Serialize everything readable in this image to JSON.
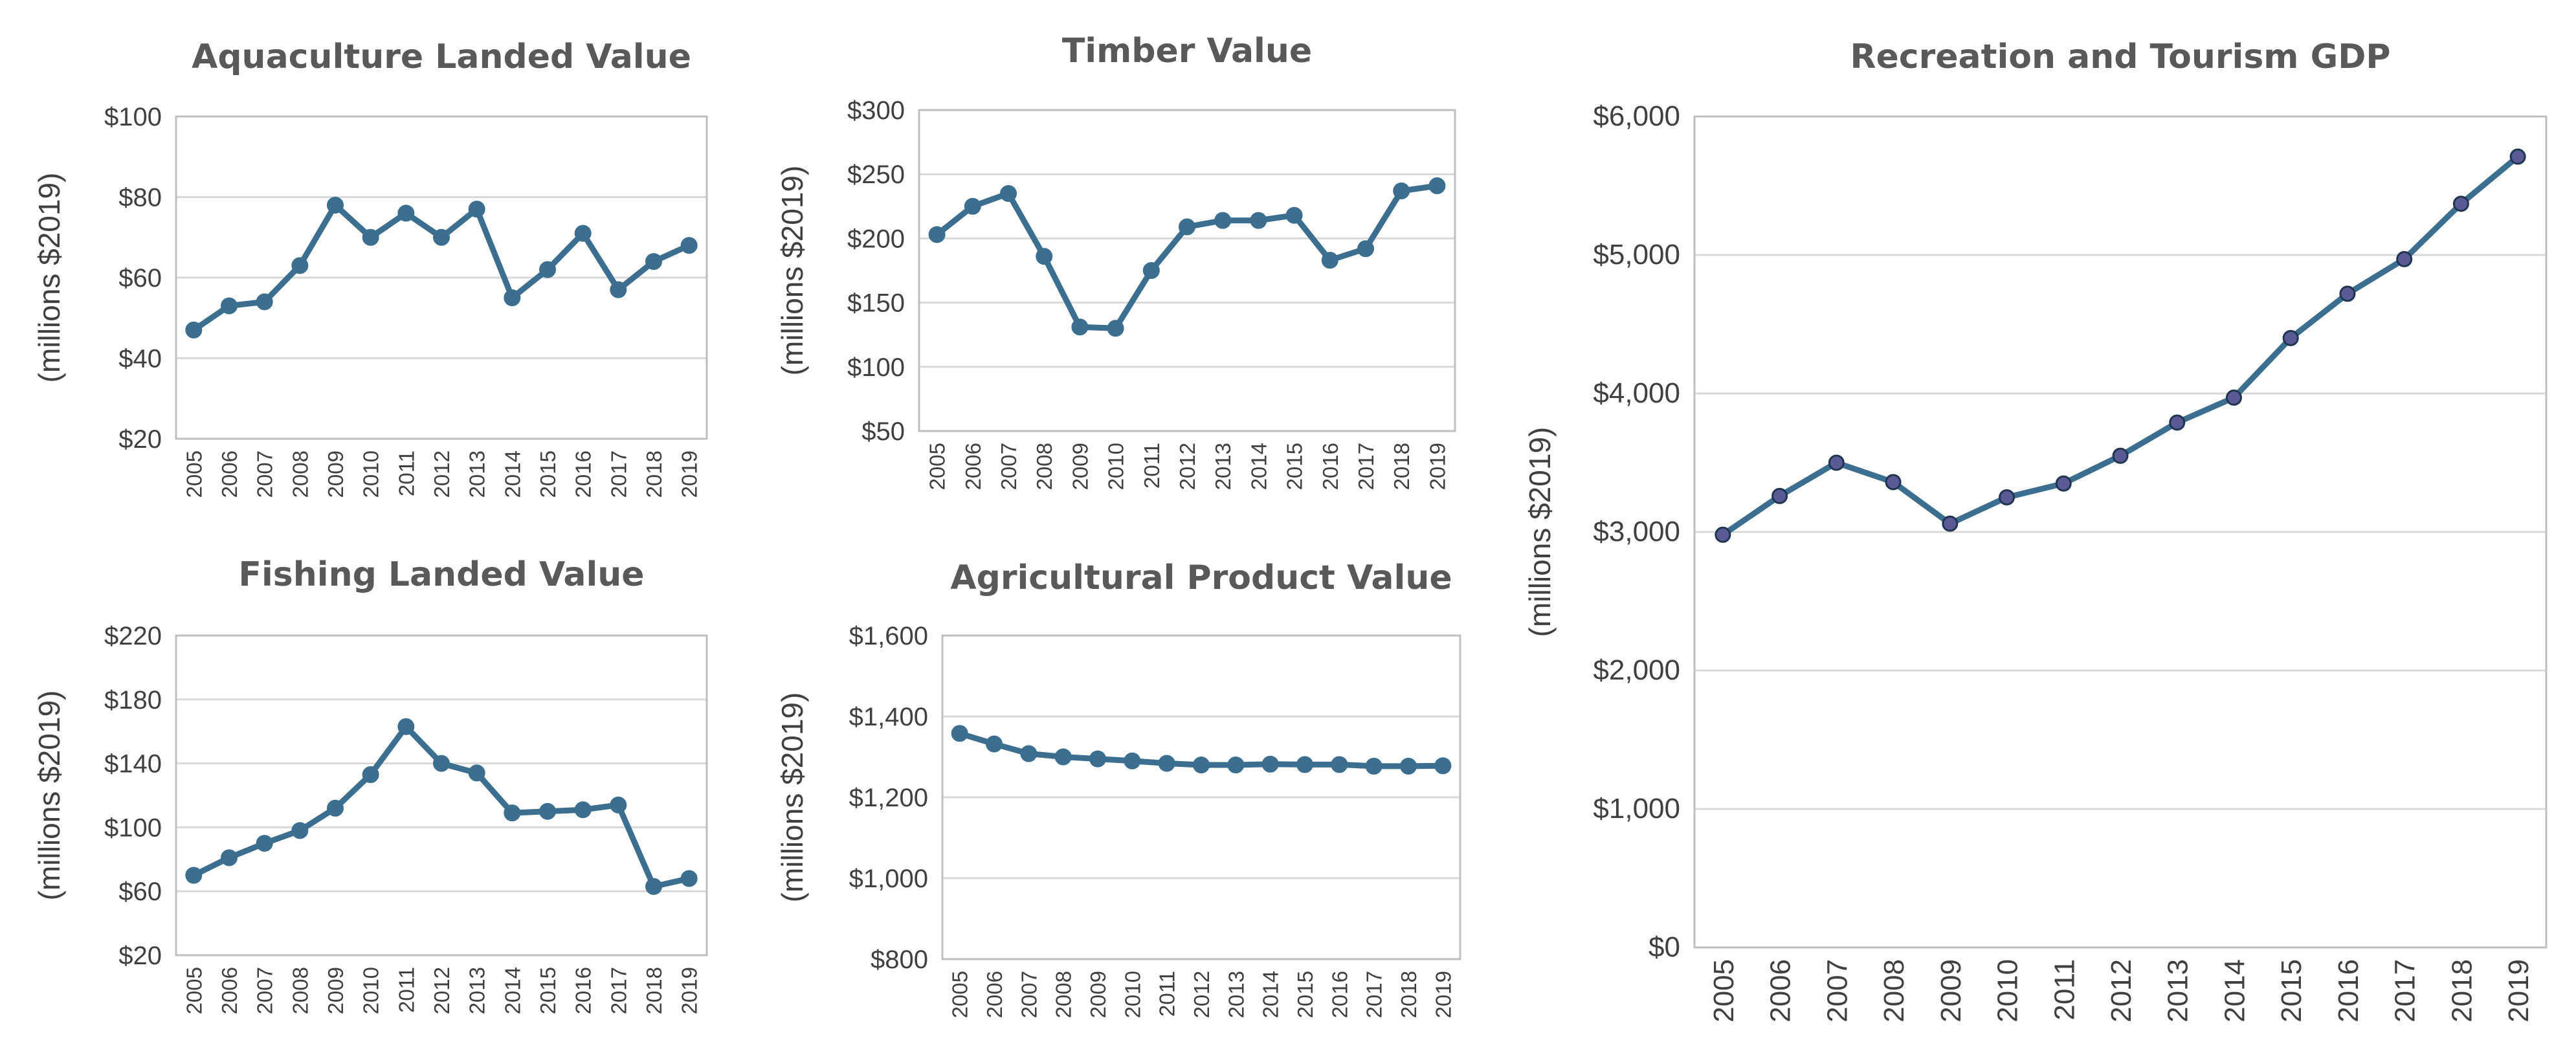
{
  "chart_data": [
    {
      "id": "aquaculture",
      "type": "line",
      "title": "Aquaculture Landed Value",
      "ylabel": "(millions $2019)",
      "ylim": [
        20,
        100
      ],
      "yticks": [
        20,
        40,
        60,
        80,
        100
      ],
      "ytick_labels": [
        "$20",
        "$40",
        "$60",
        "$80",
        "$100"
      ],
      "categories": [
        "2005",
        "2006",
        "2007",
        "2008",
        "2009",
        "2010",
        "2011",
        "2012",
        "2013",
        "2014",
        "2015",
        "2016",
        "2017",
        "2018",
        "2019"
      ],
      "values": [
        47,
        53,
        54,
        63,
        78,
        70,
        76,
        70,
        77,
        55,
        62,
        71,
        57,
        64,
        68
      ],
      "grid": true,
      "line_color": "#3b6e8f"
    },
    {
      "id": "timber",
      "type": "line",
      "title": "Timber Value",
      "ylabel": "(millions $2019)",
      "ylim": [
        50,
        300
      ],
      "yticks": [
        50,
        100,
        150,
        200,
        250,
        300
      ],
      "ytick_labels": [
        "$50",
        "$100",
        "$150",
        "$200",
        "$250",
        "$300"
      ],
      "categories": [
        "2005",
        "2006",
        "2007",
        "2008",
        "2009",
        "2010",
        "2011",
        "2012",
        "2013",
        "2014",
        "2015",
        "2016",
        "2017",
        "2018",
        "2019"
      ],
      "values": [
        203,
        225,
        235,
        186,
        131,
        130,
        175,
        209,
        214,
        214,
        218,
        183,
        192,
        237,
        241
      ],
      "grid": true,
      "line_color": "#3b6e8f"
    },
    {
      "id": "fishing",
      "type": "line",
      "title": "Fishing Landed Value",
      "ylabel": "(millions $2019)",
      "ylim": [
        20,
        220
      ],
      "yticks": [
        20,
        60,
        100,
        140,
        180,
        220
      ],
      "ytick_labels": [
        "$20",
        "$60",
        "$100",
        "$140",
        "$180",
        "$220"
      ],
      "categories": [
        "2005",
        "2006",
        "2007",
        "2008",
        "2009",
        "2010",
        "2011",
        "2012",
        "2013",
        "2014",
        "2015",
        "2016",
        "2017",
        "2018",
        "2019"
      ],
      "values": [
        70,
        81,
        90,
        98,
        112,
        133,
        163,
        140,
        134,
        109,
        110,
        111,
        114,
        63,
        68
      ],
      "grid": true,
      "line_color": "#3b6e8f"
    },
    {
      "id": "agricultural",
      "type": "line",
      "title": "Agricultural Product Value",
      "ylabel": "(millions $2019)",
      "ylim": [
        800,
        1600
      ],
      "yticks": [
        800,
        1000,
        1200,
        1400,
        1600
      ],
      "ytick_labels": [
        "$800",
        "$1,000",
        "$1,200",
        "$1,400",
        "$1,600"
      ],
      "categories": [
        "2005",
        "2006",
        "2007",
        "2008",
        "2009",
        "2010",
        "2011",
        "2012",
        "2013",
        "2014",
        "2015",
        "2016",
        "2017",
        "2018",
        "2019"
      ],
      "values": [
        1358,
        1332,
        1308,
        1300,
        1295,
        1290,
        1284,
        1280,
        1280,
        1282,
        1281,
        1281,
        1277,
        1277,
        1278
      ],
      "grid": true,
      "line_color": "#3b6e8f"
    },
    {
      "id": "recreation",
      "type": "line",
      "title": "Recreation and Tourism GDP",
      "ylabel": "(millions $2019)",
      "ylim": [
        0,
        6000
      ],
      "yticks": [
        0,
        1000,
        2000,
        3000,
        4000,
        5000,
        6000
      ],
      "ytick_labels": [
        "$0",
        "$1,000",
        "$2,000",
        "$3,000",
        "$4,000",
        "$5,000",
        "$6,000"
      ],
      "categories": [
        "2005",
        "2006",
        "2007",
        "2008",
        "2009",
        "2010",
        "2011",
        "2012",
        "2013",
        "2014",
        "2015",
        "2016",
        "2017",
        "2018",
        "2019"
      ],
      "values": [
        2980,
        3260,
        3500,
        3360,
        3060,
        3250,
        3350,
        3550,
        3790,
        3970,
        4400,
        4720,
        4970,
        5370,
        5710
      ],
      "grid": true,
      "line_color": "#3b6e8f",
      "marker_color": "#5a5a96"
    }
  ]
}
